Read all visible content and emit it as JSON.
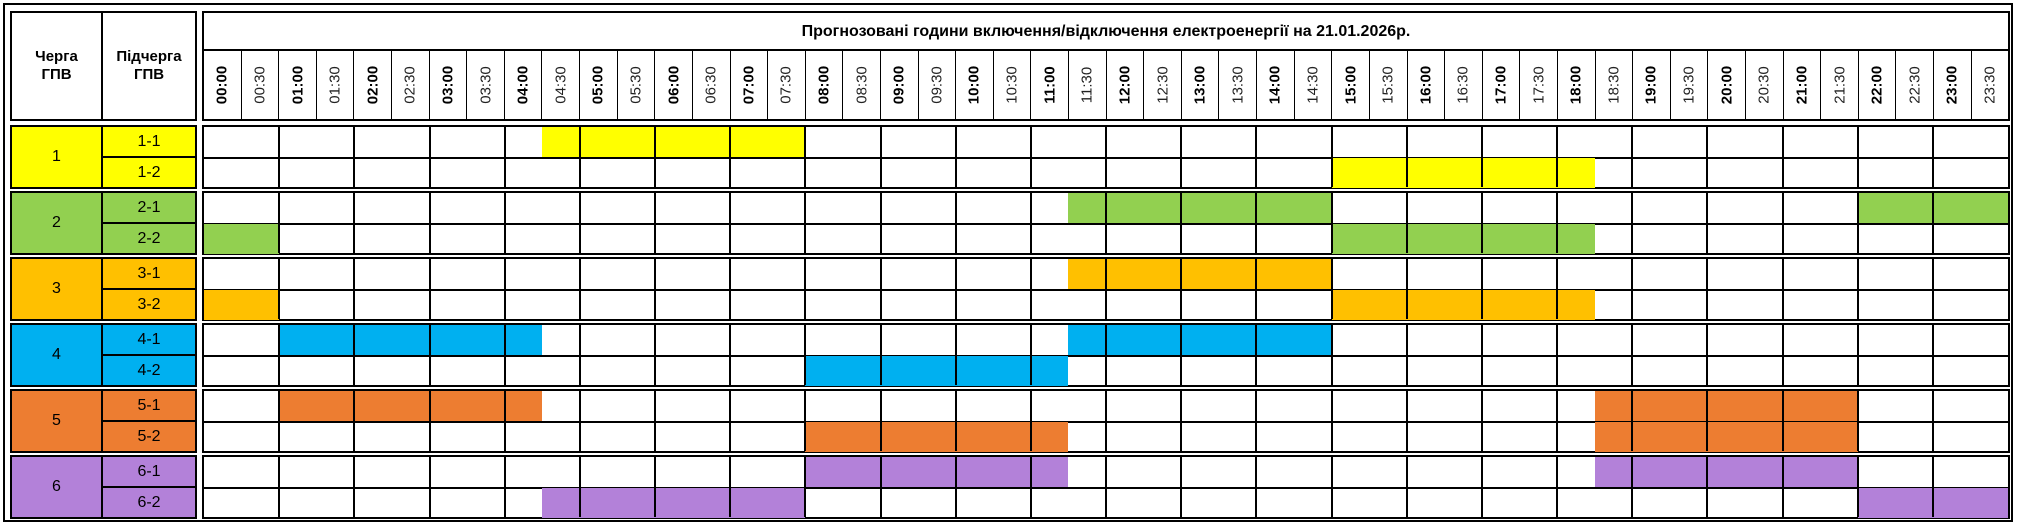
{
  "title": "Прогнозовані години включення/відключення електроенергії на 21.01.2026р.",
  "headers": {
    "queue": "Черга ГПВ",
    "subqueue": "Підчерга ГПВ"
  },
  "time_slots": [
    "00:00",
    "00:30",
    "01:00",
    "01:30",
    "02:00",
    "02:30",
    "03:00",
    "03:30",
    "04:00",
    "04:30",
    "05:00",
    "05:30",
    "06:00",
    "06:30",
    "07:00",
    "07:30",
    "08:00",
    "08:30",
    "09:00",
    "09:30",
    "10:00",
    "10:30",
    "11:00",
    "11:30",
    "12:00",
    "12:30",
    "13:00",
    "13:30",
    "14:00",
    "14:30",
    "15:00",
    "15:30",
    "16:00",
    "16:30",
    "17:00",
    "17:30",
    "18:00",
    "18:30",
    "19:00",
    "19:30",
    "20:00",
    "20:30",
    "21:00",
    "21:30",
    "22:00",
    "22:30",
    "23:00",
    "23:30"
  ],
  "groups": [
    {
      "label": "1",
      "color": "#FFFF00",
      "subgroups": [
        {
          "label": "1-1",
          "outages": [
            [
              "04:30",
              "08:00"
            ]
          ]
        },
        {
          "label": "1-2",
          "outages": [
            [
              "15:00",
              "18:30"
            ]
          ]
        }
      ]
    },
    {
      "label": "2",
      "color": "#92D050",
      "subgroups": [
        {
          "label": "2-1",
          "outages": [
            [
              "11:30",
              "15:00"
            ],
            [
              "22:00",
              "24:00"
            ]
          ]
        },
        {
          "label": "2-2",
          "outages": [
            [
              "00:00",
              "01:00"
            ],
            [
              "15:00",
              "18:30"
            ]
          ]
        }
      ]
    },
    {
      "label": "3",
      "color": "#FFC000",
      "subgroups": [
        {
          "label": "3-1",
          "outages": [
            [
              "11:30",
              "15:00"
            ]
          ]
        },
        {
          "label": "3-2",
          "outages": [
            [
              "00:00",
              "01:00"
            ],
            [
              "15:00",
              "18:30"
            ]
          ]
        }
      ]
    },
    {
      "label": "4",
      "color": "#00B0F0",
      "subgroups": [
        {
          "label": "4-1",
          "outages": [
            [
              "01:00",
              "04:30"
            ],
            [
              "11:30",
              "15:00"
            ]
          ]
        },
        {
          "label": "4-2",
          "outages": [
            [
              "08:00",
              "11:30"
            ]
          ]
        }
      ]
    },
    {
      "label": "5",
      "color": "#ED7D31",
      "subgroups": [
        {
          "label": "5-1",
          "outages": [
            [
              "01:00",
              "04:30"
            ],
            [
              "18:30",
              "22:00"
            ]
          ]
        },
        {
          "label": "5-2",
          "outages": [
            [
              "08:00",
              "11:30"
            ],
            [
              "18:30",
              "22:00"
            ]
          ]
        }
      ]
    },
    {
      "label": "6",
      "color": "#B381D9",
      "subgroups": [
        {
          "label": "6-1",
          "outages": [
            [
              "08:00",
              "11:30"
            ],
            [
              "18:30",
              "22:00"
            ]
          ]
        },
        {
          "label": "6-2",
          "outages": [
            [
              "04:30",
              "08:00"
            ],
            [
              "22:00",
              "24:00"
            ]
          ]
        }
      ]
    }
  ]
}
